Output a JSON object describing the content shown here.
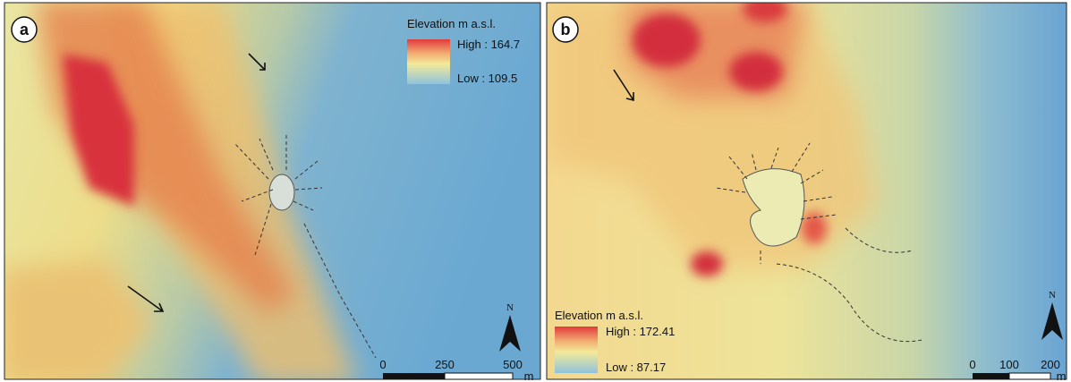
{
  "panels": [
    {
      "label": "a",
      "legend": {
        "title": "Elevation m a.s.l.",
        "high": "High : 164.7",
        "low": "Low : 109.5"
      },
      "scale": {
        "ticks": [
          "0",
          "250",
          "500"
        ],
        "unit": "m"
      },
      "north": "N"
    },
    {
      "label": "b",
      "legend": {
        "title": "Elevation m a.s.l.",
        "high": "High : 172.41",
        "low": "Low : 87.17"
      },
      "scale": {
        "ticks": [
          "0",
          "100",
          "200"
        ],
        "unit": "m"
      },
      "north": "N"
    }
  ]
}
